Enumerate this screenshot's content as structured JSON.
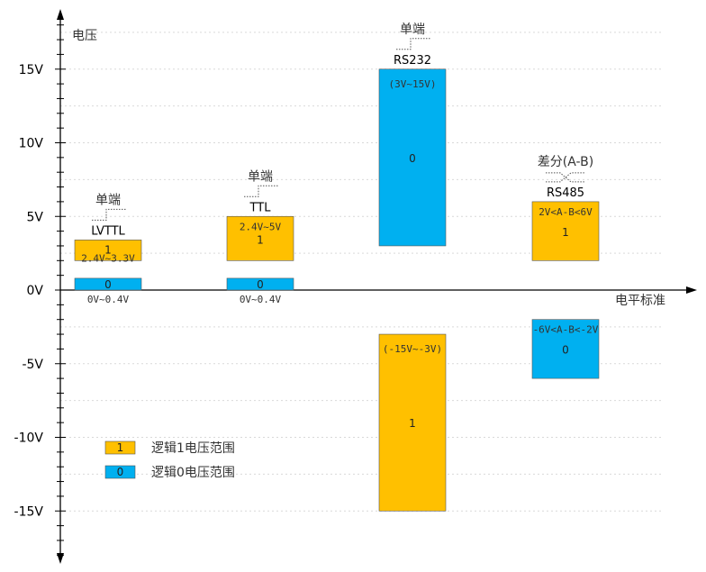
{
  "y_axis_label": "电压",
  "x_axis_label": "电平标准",
  "ticks": [
    {
      "value": 15,
      "label": "15V"
    },
    {
      "value": 10,
      "label": "10V"
    },
    {
      "value": 5,
      "label": "5V"
    },
    {
      "value": 0,
      "label": "0V"
    },
    {
      "value": -5,
      "label": "-5V"
    },
    {
      "value": -10,
      "label": "-10V"
    },
    {
      "value": -15,
      "label": "-15V"
    }
  ],
  "colors": {
    "logic1": "#FFC000",
    "logic0": "#00B0F0"
  },
  "standards": [
    {
      "id": "lvttl",
      "name": "LVTTL",
      "mode": "单端",
      "bars": [
        {
          "logic": "1",
          "from": 2.0,
          "to": 3.4,
          "range": "2.4V~3.3V"
        },
        {
          "logic": "0",
          "from": 0.0,
          "to": 0.8,
          "range": "0V~0.4V"
        }
      ]
    },
    {
      "id": "ttl",
      "name": "TTL",
      "mode": "单端",
      "bars": [
        {
          "logic": "1",
          "from": 2.0,
          "to": 5.0,
          "range": "2.4V~5V"
        },
        {
          "logic": "0",
          "from": 0.0,
          "to": 0.8,
          "range": "0V~0.4V"
        }
      ]
    },
    {
      "id": "rs232",
      "name": "RS232",
      "mode": "单端",
      "bars": [
        {
          "logic": "0",
          "from": 3.0,
          "to": 15.0,
          "range": "(3V~15V)"
        },
        {
          "logic": "1",
          "from": -15.0,
          "to": -3.0,
          "range": "(-15V~-3V)"
        }
      ]
    },
    {
      "id": "rs485",
      "name": "RS485",
      "mode": "差分(A-B)",
      "bars": [
        {
          "logic": "1",
          "from": 2.0,
          "to": 6.0,
          "range": "2V<A-B<6V"
        },
        {
          "logic": "0",
          "from": -6.0,
          "to": -2.0,
          "range": "-6V<A-B<-2V"
        }
      ]
    }
  ],
  "legend": [
    {
      "logic": "1",
      "text": "逻辑1电压范围"
    },
    {
      "logic": "0",
      "text": "逻辑0电压范围"
    }
  ]
}
